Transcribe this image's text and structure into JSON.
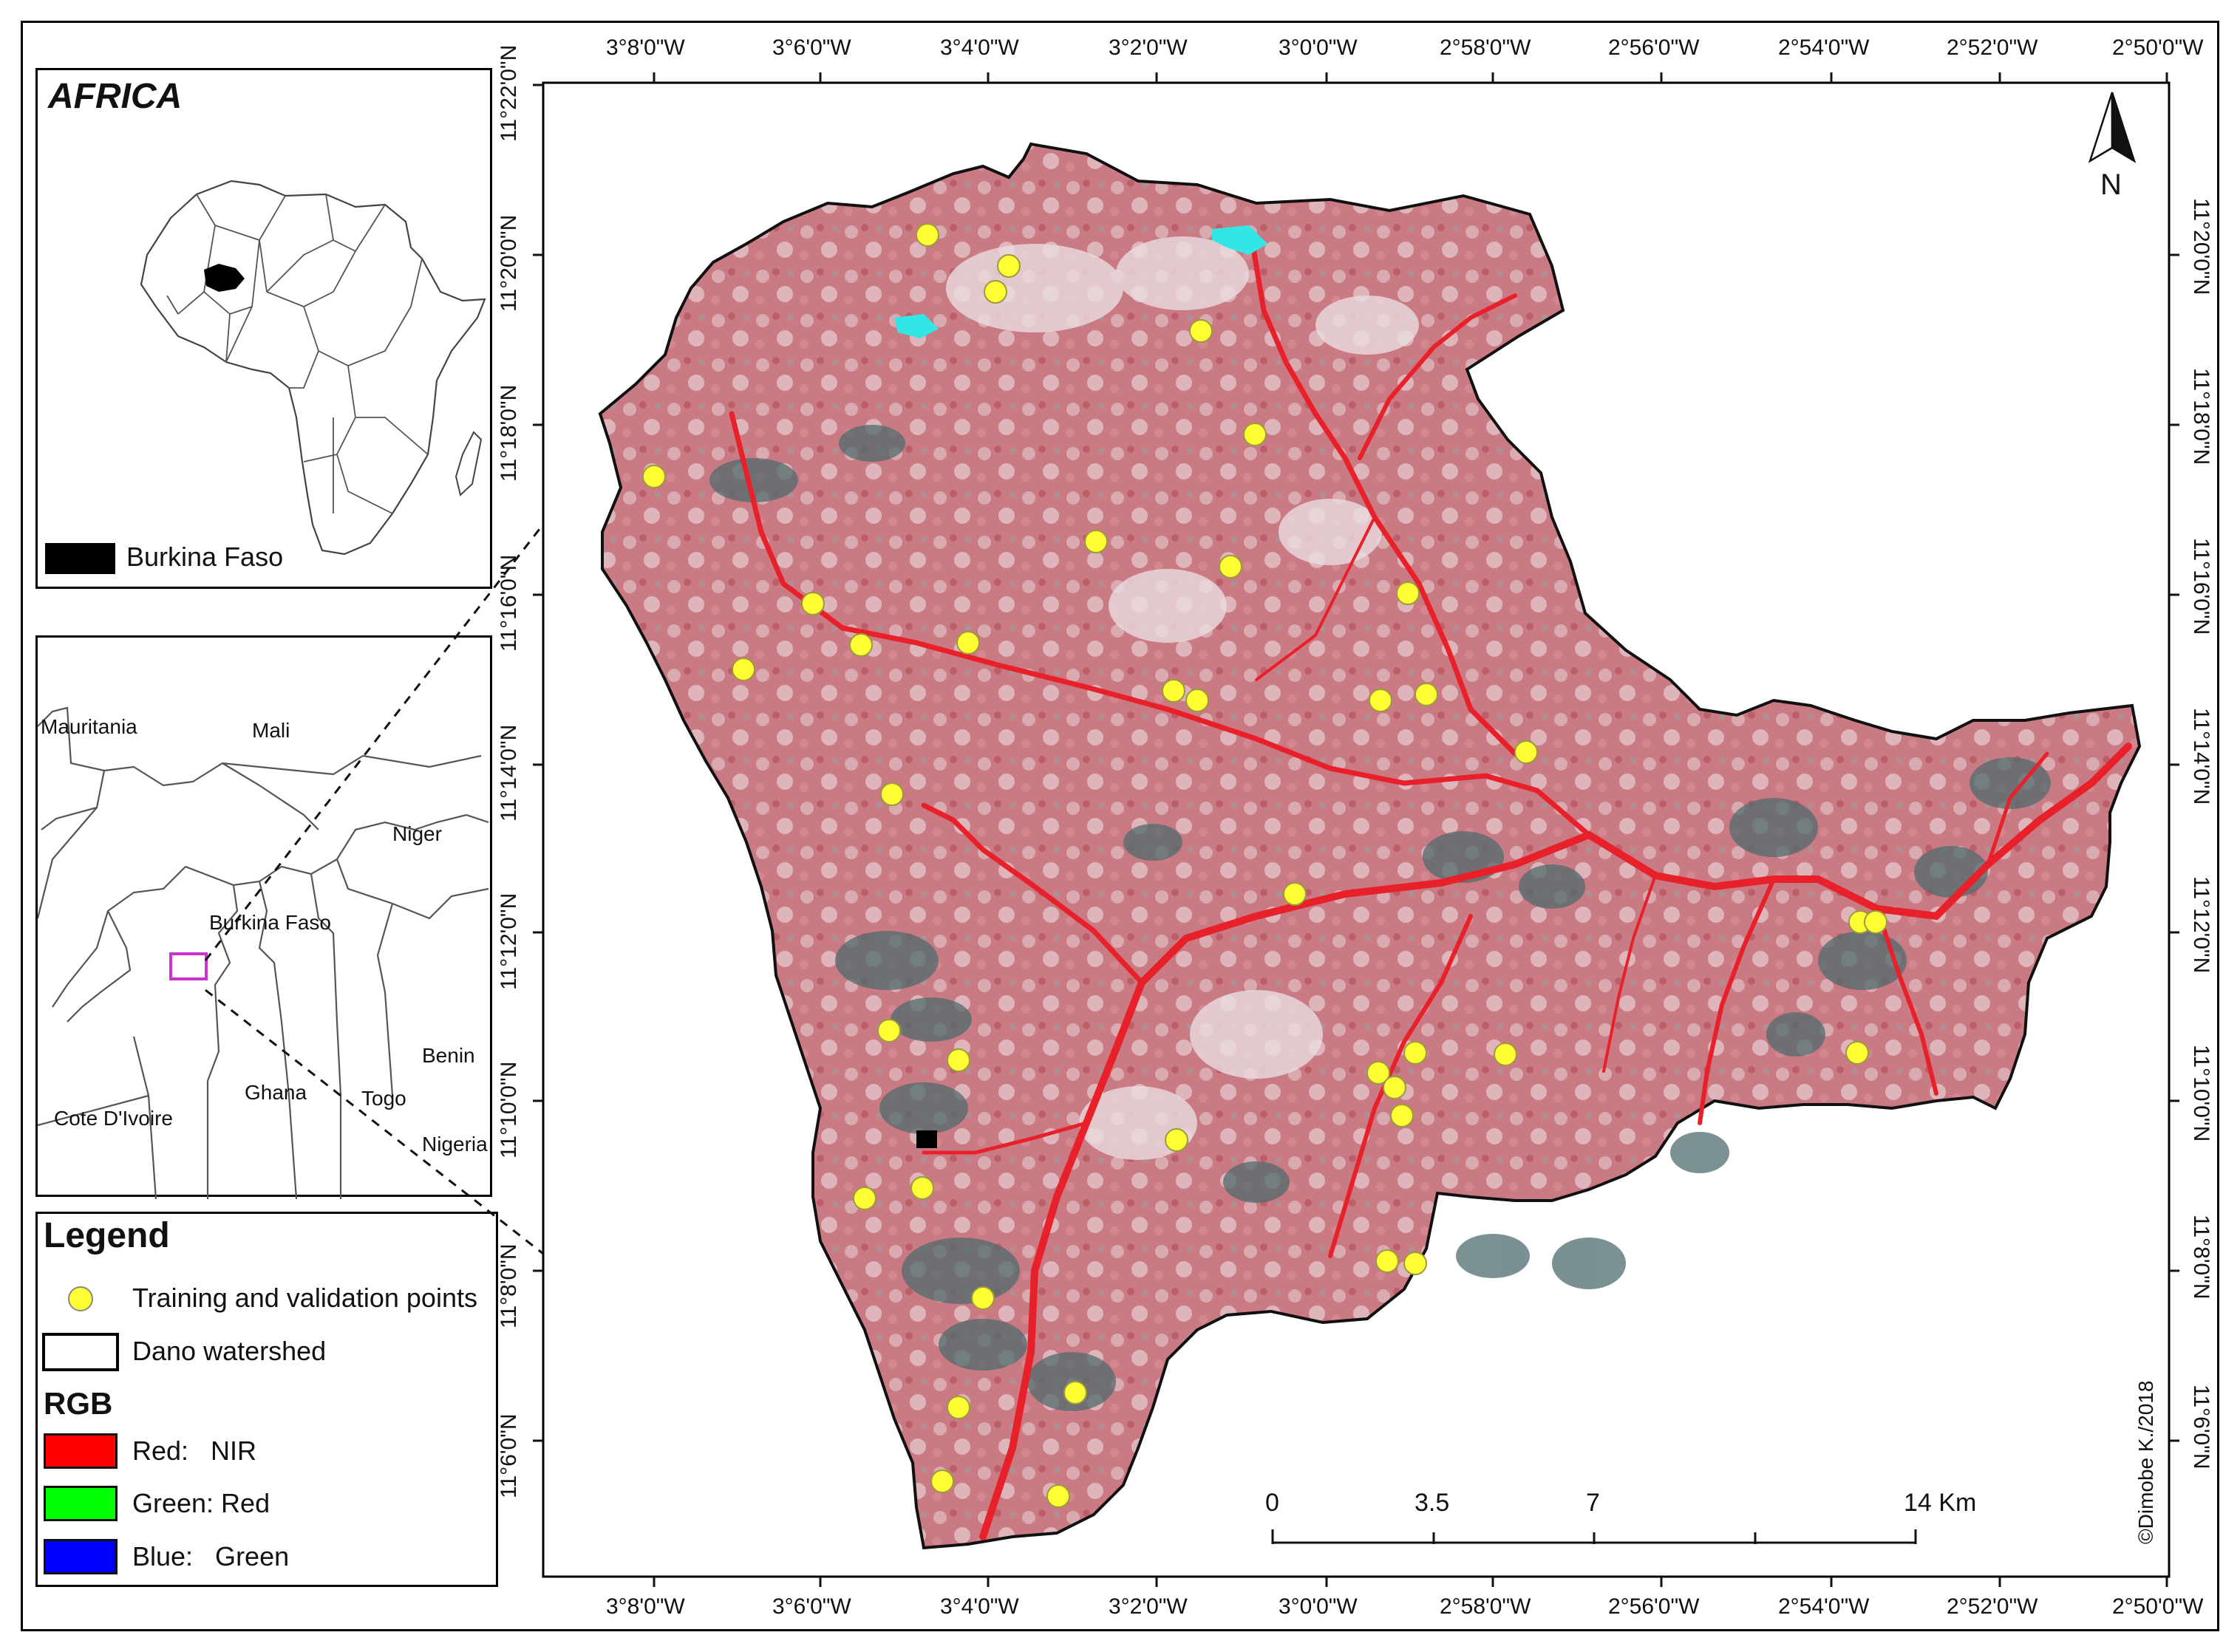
{
  "inset_africa": {
    "title": "AFRICA",
    "legend_label": "Burkina Faso"
  },
  "inset_region": {
    "countries": [
      "Mauritania",
      "Mali",
      "Niger",
      "Burkina Faso",
      "Benin",
      "Ghana",
      "Togo",
      "Cote D'Ivoire",
      "Nigeria"
    ]
  },
  "legend": {
    "title": "Legend",
    "points_label": "Training and validation points",
    "watershed_label": "Dano watershed",
    "rgb_title": "RGB",
    "bands": [
      {
        "label": "Red:   NIR",
        "color": "#ff0000"
      },
      {
        "label": "Green: Red",
        "color": "#00ff00"
      },
      {
        "label": "Blue:   Green",
        "color": "#0000ff"
      }
    ]
  },
  "map": {
    "north_label": "N",
    "credit": "©Dimobe K./2018",
    "lon_ticks": [
      "3°8'0\"W",
      "3°6'0\"W",
      "3°4'0\"W",
      "3°2'0\"W",
      "3°0'0\"W",
      "2°58'0\"W",
      "2°56'0\"W",
      "2°54'0\"W",
      "2°52'0\"W",
      "2°50'0\"W"
    ],
    "lat_ticks": [
      "11°22'0\"N",
      "11°20'0\"N",
      "11°18'0\"N",
      "11°16'0\"N",
      "11°14'0\"N",
      "11°12'0\"N",
      "11°10'0\"N",
      "11°8'0\"N",
      "11°6'0\"N"
    ],
    "scalebar": {
      "labels": [
        "0",
        "3.5",
        "7",
        "14 Km"
      ]
    },
    "colors": {
      "point": "#ffff33",
      "water": "#33e6e6",
      "river": "#e8202a",
      "imagery": "#c8707a"
    }
  }
}
